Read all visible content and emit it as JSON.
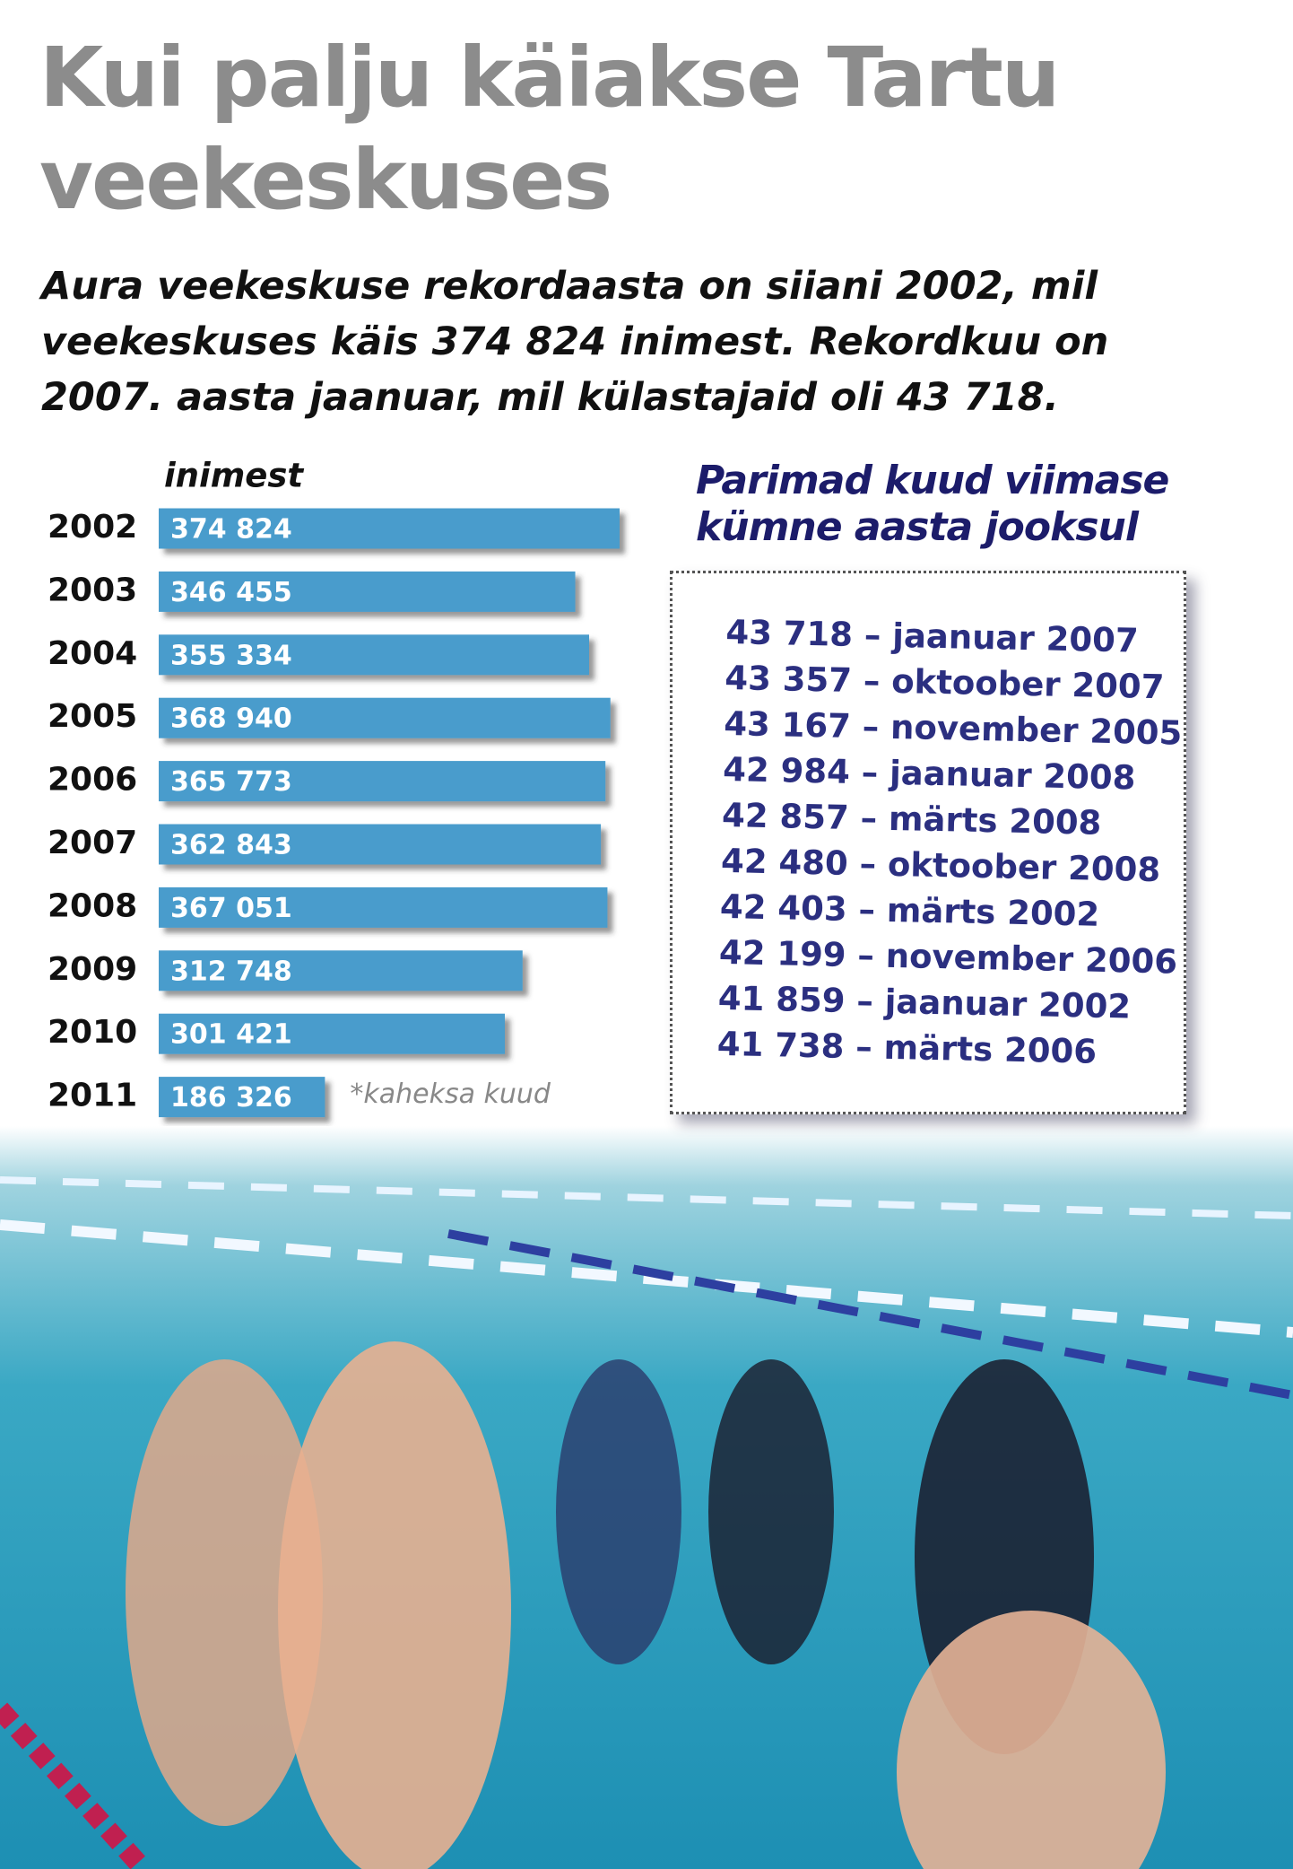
{
  "chart_data": {
    "type": "bar",
    "orientation": "horizontal",
    "title": "Kui palju käiakse Tartu veekeskuses",
    "subtitle": "Aura veekeskuse rekordaasta on siiani 2002, mil veekeskuses käis 374 824 inimest. Rekordkuu on 2007. aasta jaanuar, mil külastajaid oli 43 718.",
    "x_label": "inimest",
    "categories": [
      "2002",
      "2003",
      "2004",
      "2005",
      "2006",
      "2007",
      "2008",
      "2009",
      "2010",
      "2011"
    ],
    "values": [
      374824,
      346455,
      355334,
      368940,
      365773,
      362843,
      367051,
      312748,
      301421,
      186326
    ],
    "value_labels": [
      "374 824",
      "346 455",
      "355 334",
      "368 940",
      "365 773",
      "362 843",
      "367 051",
      "312 748",
      "301 421",
      "186 326"
    ],
    "color": "#4a9ccc",
    "xlim": [
      80000,
      380000
    ],
    "annotation": "*kaheksa kuud"
  },
  "best_months": {
    "title": "Parimad kuud viimase kümne aasta jooksul",
    "items": [
      "43 718 – jaanuar 2007",
      "43 357 – oktoober 2007",
      "43 167 – november 2005",
      "42 984 – jaanuar 2008",
      "42 857 – märts 2008",
      "42 480 – oktoober 2008",
      "42 403 – märts 2002",
      "42 199 – november 2006",
      "41 859 – jaanuar 2002",
      "41 738 – märts 2006"
    ]
  }
}
